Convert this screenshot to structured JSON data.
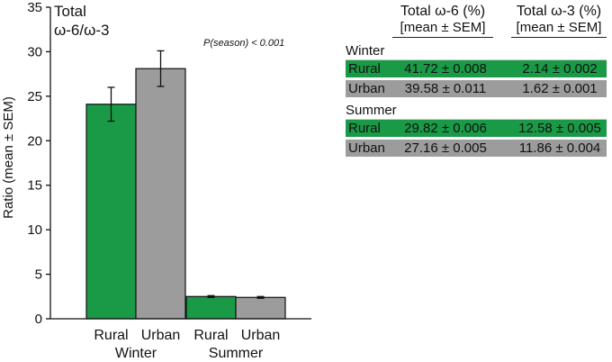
{
  "chart_data": {
    "type": "bar",
    "title_lines": [
      "Total",
      "ω-6/ω-3"
    ],
    "ylabel": "Ratio (mean ± SEM)",
    "xlabel": "",
    "ylim": [
      0,
      35
    ],
    "yticks": [
      0,
      5,
      10,
      15,
      20,
      25,
      30,
      35
    ],
    "annotation": "P(season) < 0.001",
    "groups": [
      {
        "name": "Winter",
        "bars": [
          {
            "label": "Rural",
            "value": 24.1,
            "sem": 1.9,
            "color": "#1a9a46"
          },
          {
            "label": "Urban",
            "value": 28.1,
            "sem": 2.0,
            "color": "#9c9c9c"
          }
        ]
      },
      {
        "name": "Summer",
        "bars": [
          {
            "label": "Rural",
            "value": 2.5,
            "sem": 0.1,
            "color": "#1a9a46"
          },
          {
            "label": "Urban",
            "value": 2.4,
            "sem": 0.1,
            "color": "#9c9c9c"
          }
        ]
      }
    ],
    "grid": false
  },
  "table": {
    "columns": [
      {
        "title": "Total ω-6 (%)",
        "subtitle": "[mean ± SEM]"
      },
      {
        "title": "Total ω-3 (%)",
        "subtitle": "[mean ± SEM]"
      }
    ],
    "sections": [
      {
        "name": "Winter",
        "rows": [
          {
            "label": "Rural",
            "v1": "41.72 ± 0.008",
            "v2": "2.14 ± 0.002",
            "color": "#1a9a46"
          },
          {
            "label": "Urban",
            "v1": "39.58 ± 0.011",
            "v2": "1.62 ± 0.001",
            "color": "#9c9c9c"
          }
        ]
      },
      {
        "name": "Summer",
        "rows": [
          {
            "label": "Rural",
            "v1": "29.82 ± 0.006",
            "v2": "12.58 ± 0.005",
            "color": "#1a9a46"
          },
          {
            "label": "Urban",
            "v1": "27.16 ± 0.005",
            "v2": "11.86 ± 0.004",
            "color": "#9c9c9c"
          }
        ]
      }
    ]
  }
}
